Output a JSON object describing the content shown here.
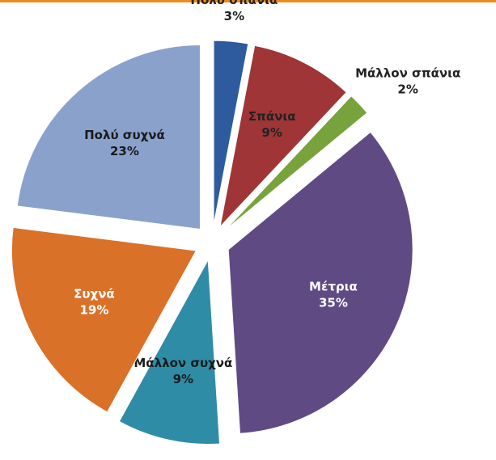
{
  "chart_data": {
    "type": "pie",
    "categories": [
      "Πολύ σπάνια",
      "Σπάνια",
      "Μάλλον σπάνια",
      "Μέτρια",
      "Μάλλον συχνά",
      "Συχνά",
      "Πολύ συχνά"
    ],
    "values": [
      3,
      9,
      2,
      35,
      9,
      19,
      23
    ],
    "value_labels": [
      "3%",
      "9%",
      "2%",
      "35%",
      "9%",
      "19%",
      "23%"
    ],
    "colors": [
      "#2e5b9e",
      "#9f3536",
      "#78a23b",
      "#5f4a84",
      "#2f8ca6",
      "#d97228",
      "#8aa2cb"
    ]
  }
}
